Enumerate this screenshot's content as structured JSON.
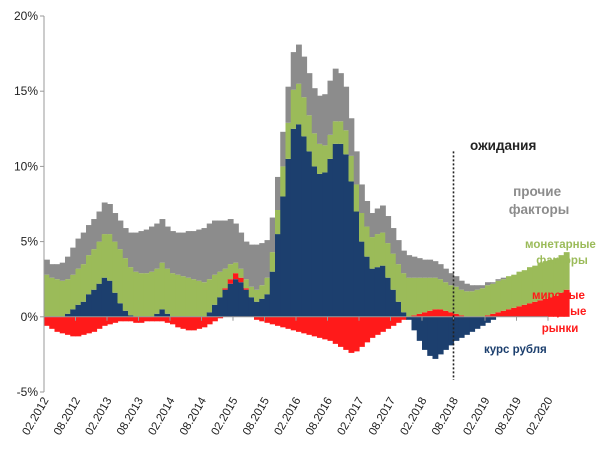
{
  "chart_data": {
    "type": "bar",
    "stacked": true,
    "diverging": true,
    "ylim": [
      -5,
      20
    ],
    "yticks": [
      -5,
      0,
      5,
      10,
      15,
      20
    ],
    "ytick_labels": [
      "-5%",
      "0%",
      "5%",
      "10%",
      "15%",
      "20%"
    ],
    "xtick_labels": [
      "02.2012",
      "08.2012",
      "02.2013",
      "08.2013",
      "02.2014",
      "08.2014",
      "02.2015",
      "08.2015",
      "02.2016",
      "08.2016",
      "02.2017",
      "08.2017",
      "02.2018",
      "08.2018",
      "02.2019",
      "08.2019",
      "02.2020"
    ],
    "start": "2012-02",
    "end": "2019-07",
    "expectations_from": "2018-08",
    "grid": false,
    "legend": "inline labels at right",
    "colors": {
      "exchange_rate": "#1c3f6e",
      "commodity": "#ff1a1a",
      "monetary": "#9bbb59",
      "other": "#8c8c8c",
      "divider": "#222222",
      "axis": "#999999"
    },
    "annotations": {
      "expectations": "ожидания"
    },
    "series": [
      {
        "key": "exchange_rate",
        "name": "курс рубля",
        "values": [
          0.0,
          0.0,
          0.0,
          0.0,
          0.2,
          0.5,
          0.8,
          1.0,
          1.5,
          1.8,
          2.2,
          2.6,
          2.4,
          1.6,
          0.9,
          0.4,
          0.1,
          0.0,
          0.0,
          0.0,
          0.0,
          0.2,
          0.5,
          0.2,
          0.0,
          0.0,
          0.0,
          0.0,
          0.0,
          0.0,
          0.0,
          0.3,
          0.8,
          1.3,
          1.8,
          2.2,
          2.5,
          2.3,
          1.8,
          1.3,
          1.0,
          1.2,
          1.5,
          3.0,
          5.5,
          8.0,
          10.5,
          12.5,
          12.8,
          12.0,
          11.0,
          10.0,
          9.5,
          9.6,
          10.5,
          11.5,
          11.5,
          10.8,
          9.0,
          7.0,
          5.0,
          4.0,
          3.2,
          3.3,
          3.4,
          2.6,
          1.8,
          1.0,
          0.3,
          -0.2,
          -0.9,
          -1.6,
          -2.2,
          -2.6,
          -2.8,
          -2.5,
          -2.2,
          -1.9,
          -1.6,
          -1.4,
          -1.2,
          -1.0,
          -0.8,
          -0.6,
          -0.4,
          -0.2,
          0.0,
          0.0,
          0.0,
          0.0,
          0.0,
          0.0,
          0.0,
          0.0,
          0.0,
          0.0,
          0.0,
          0.0,
          0.0,
          0.0
        ]
      },
      {
        "key": "commodity",
        "name": "мировые товарные рынки",
        "values": [
          -0.6,
          -0.8,
          -1.0,
          -1.1,
          -1.2,
          -1.3,
          -1.3,
          -1.2,
          -1.1,
          -1.0,
          -0.8,
          -0.6,
          -0.5,
          -0.4,
          -0.3,
          -0.3,
          -0.3,
          -0.4,
          -0.4,
          -0.3,
          -0.3,
          -0.3,
          -0.3,
          -0.4,
          -0.5,
          -0.7,
          -0.8,
          -0.9,
          -0.9,
          -0.8,
          -0.7,
          -0.5,
          -0.3,
          -0.1,
          0.1,
          0.3,
          0.4,
          0.3,
          0.1,
          0.0,
          -0.2,
          -0.3,
          -0.4,
          -0.5,
          -0.6,
          -0.7,
          -0.8,
          -0.9,
          -1.0,
          -1.1,
          -1.2,
          -1.3,
          -1.4,
          -1.5,
          -1.6,
          -1.8,
          -2.0,
          -2.2,
          -2.4,
          -2.3,
          -2.0,
          -1.7,
          -1.4,
          -1.2,
          -1.0,
          -0.8,
          -0.6,
          -0.4,
          -0.2,
          0.0,
          0.1,
          0.2,
          0.3,
          0.4,
          0.5,
          0.5,
          0.4,
          0.3,
          0.2,
          0.1,
          0.0,
          0.0,
          0.0,
          0.0,
          0.1,
          0.2,
          0.3,
          0.4,
          0.5,
          0.6,
          0.7,
          0.8,
          0.9,
          1.0,
          1.1,
          1.2,
          1.3,
          1.4,
          1.6,
          1.8
        ]
      },
      {
        "key": "monetary",
        "name": "монетарные факторы",
        "values": [
          2.8,
          2.6,
          2.5,
          2.4,
          2.3,
          2.3,
          2.4,
          2.5,
          2.6,
          2.7,
          2.8,
          2.9,
          3.1,
          3.4,
          3.6,
          3.5,
          3.2,
          3.0,
          2.9,
          2.9,
          3.0,
          3.0,
          3.1,
          3.0,
          2.9,
          2.8,
          2.7,
          2.6,
          2.5,
          2.4,
          2.3,
          2.2,
          2.0,
          1.7,
          1.3,
          1.0,
          0.7,
          0.6,
          0.6,
          0.7,
          0.8,
          0.9,
          1.1,
          1.3,
          1.6,
          2.0,
          2.4,
          2.6,
          2.7,
          2.6,
          2.4,
          2.2,
          2.0,
          1.8,
          1.6,
          1.5,
          1.5,
          1.6,
          1.7,
          1.8,
          1.9,
          2.0,
          2.1,
          2.2,
          2.2,
          2.3,
          2.4,
          2.5,
          2.6,
          2.6,
          2.5,
          2.4,
          2.3,
          2.2,
          2.1,
          2.0,
          1.9,
          1.8,
          1.8,
          1.7,
          1.7,
          1.7,
          1.8,
          1.9,
          2.0,
          2.0,
          2.1,
          2.1,
          2.2,
          2.2,
          2.3,
          2.3,
          2.4,
          2.4,
          2.5,
          2.5,
          2.5,
          2.5,
          2.5,
          2.5
        ]
      },
      {
        "key": "other",
        "name": "прочие факторы",
        "values": [
          1.0,
          0.9,
          1.0,
          1.2,
          1.5,
          1.8,
          2.0,
          2.1,
          2.0,
          2.0,
          2.0,
          2.1,
          2.0,
          1.9,
          1.9,
          2.0,
          2.3,
          2.6,
          2.8,
          2.9,
          3.0,
          3.0,
          2.9,
          2.8,
          2.8,
          2.8,
          2.9,
          3.1,
          3.2,
          3.4,
          3.6,
          3.7,
          3.6,
          3.4,
          3.2,
          3.0,
          2.6,
          2.4,
          2.5,
          2.8,
          3.0,
          2.8,
          2.5,
          2.3,
          2.2,
          2.3,
          2.4,
          2.5,
          2.6,
          2.7,
          2.8,
          3.0,
          3.2,
          3.4,
          3.6,
          3.5,
          3.2,
          2.9,
          2.5,
          2.2,
          1.9,
          1.7,
          1.6,
          1.7,
          1.8,
          1.8,
          1.7,
          1.6,
          1.5,
          1.5,
          1.4,
          1.3,
          1.2,
          1.2,
          1.1,
          1.0,
          0.9,
          0.8,
          0.7,
          0.6,
          0.5,
          0.4,
          0.3,
          0.2,
          0.2,
          0.1,
          0.1,
          0.1,
          0.0,
          0.0,
          0.0,
          0.0,
          0.0,
          0.0,
          0.0,
          0.0,
          0.0,
          0.0,
          0.0,
          0.0
        ]
      }
    ]
  }
}
